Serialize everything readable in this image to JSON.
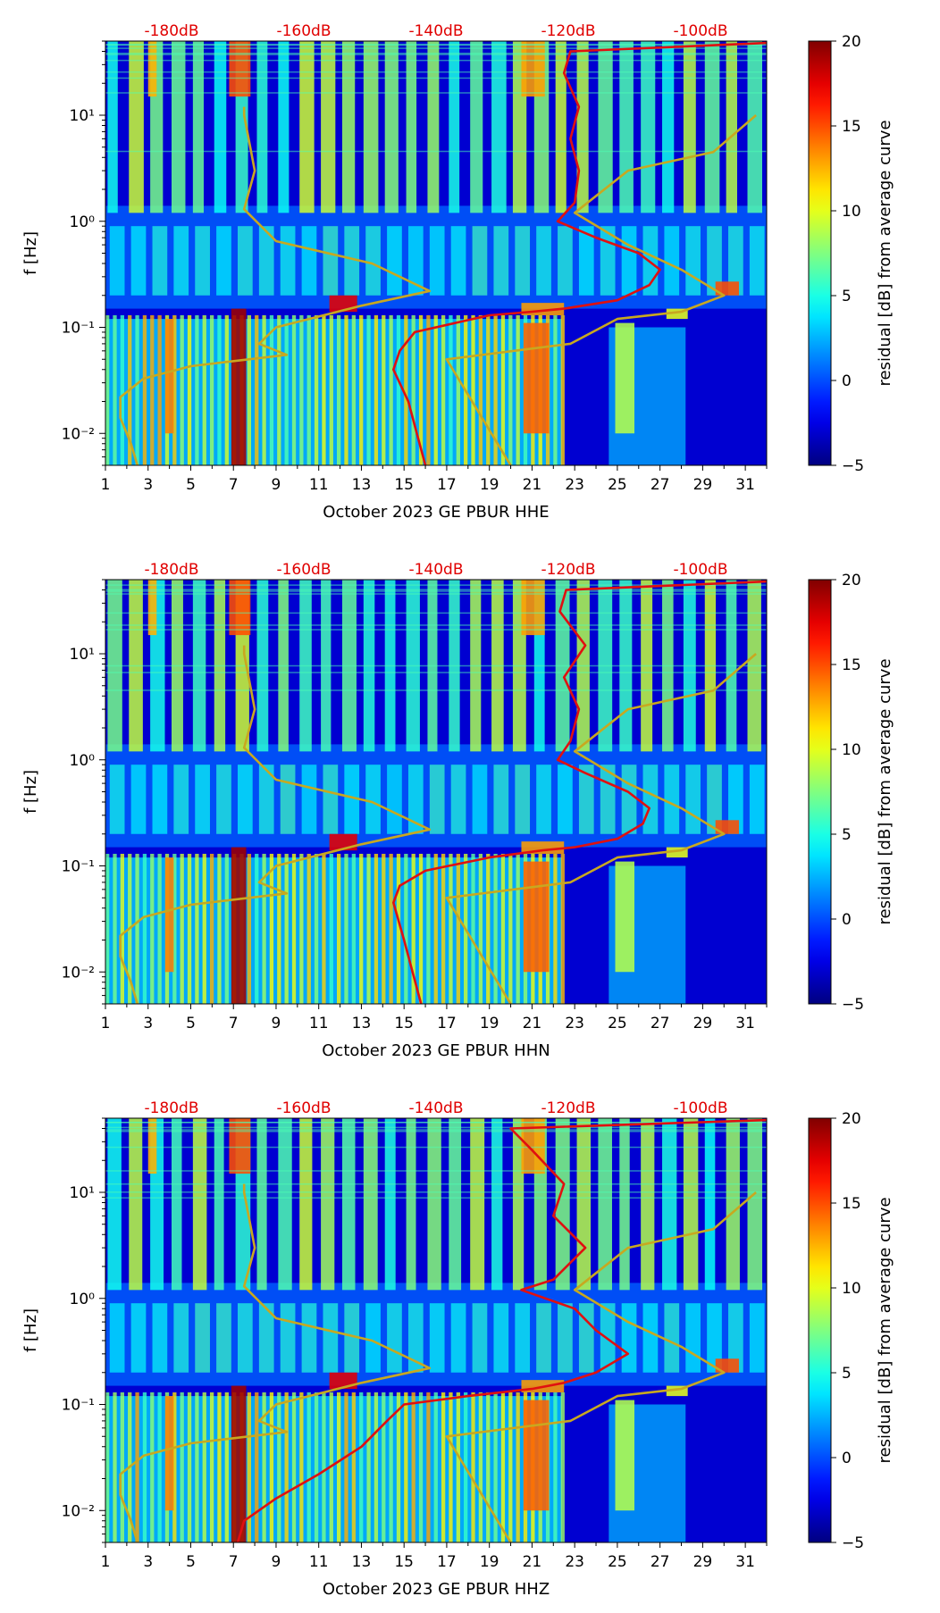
{
  "chart_data": [
    {
      "type": "heatmap",
      "xlabel": "October 2023 GE PBUR  HHE",
      "ylabel": "f [Hz]",
      "colorbar_label": "residual [dB] from average curve",
      "x_tick_labels": [
        "1",
        "3",
        "5",
        "7",
        "9",
        "11",
        "13",
        "15",
        "17",
        "19",
        "21",
        "23",
        "25",
        "27",
        "29",
        "31"
      ],
      "x_ticks": [
        1,
        3,
        5,
        7,
        9,
        11,
        13,
        15,
        17,
        19,
        21,
        23,
        25,
        27,
        29,
        31
      ],
      "xlim": [
        1,
        32
      ],
      "y_tick_labels": [
        "10⁻²",
        "10⁻¹",
        "10⁰",
        "10¹"
      ],
      "y_ticks": [
        0.01,
        0.1,
        1,
        10
      ],
      "ylim": [
        0.005,
        50
      ],
      "yscale": "log",
      "top_tick_labels": [
        "-180dB",
        "-160dB",
        "-140dB",
        "-120dB",
        "-100dB"
      ],
      "colorbar": {
        "min": -5,
        "max": 20,
        "tick_labels": [
          "20",
          "15",
          "10",
          "5",
          "0",
          "−5"
        ],
        "ticks": [
          20,
          15,
          10,
          5,
          0,
          -5
        ],
        "colormap": "jet"
      },
      "colors": {
        "psd_curve": "#e01010",
        "reference_curve": "#c8a820"
      },
      "psd_curve_day": [
        [
          16.0,
          0.005
        ],
        [
          15.6,
          0.01
        ],
        [
          15.2,
          0.02
        ],
        [
          14.5,
          0.04
        ],
        [
          14.8,
          0.06
        ],
        [
          15.5,
          0.09
        ],
        [
          19,
          0.13
        ],
        [
          21,
          0.14
        ],
        [
          22.5,
          0.15
        ],
        [
          25,
          0.18
        ],
        [
          26.5,
          0.25
        ],
        [
          27,
          0.35
        ],
        [
          26,
          0.5
        ],
        [
          24,
          0.7
        ],
        [
          22.2,
          1.0
        ],
        [
          23,
          1.5
        ],
        [
          23.2,
          3
        ],
        [
          22.8,
          6
        ],
        [
          23.2,
          12
        ],
        [
          22.5,
          25
        ],
        [
          22.8,
          40
        ],
        [
          32,
          48
        ]
      ],
      "reference_curve_day": [
        [
          2.5,
          0.005
        ],
        [
          2.2,
          0.008
        ],
        [
          1.7,
          0.014
        ],
        [
          1.7,
          0.022
        ],
        [
          2.8,
          0.033
        ],
        [
          5,
          0.043
        ],
        [
          9.5,
          0.055
        ],
        [
          8.2,
          0.07
        ],
        [
          9,
          0.1
        ],
        [
          13,
          0.16
        ],
        [
          16.2,
          0.22
        ],
        [
          13.5,
          0.4
        ],
        [
          9,
          0.65
        ],
        [
          7.5,
          1.3
        ],
        [
          8,
          3
        ],
        [
          7.5,
          10
        ],
        [
          7.5,
          12
        ]
      ],
      "reference_curve_night": [
        [
          20,
          0.005
        ],
        [
          17,
          0.05
        ],
        [
          22.8,
          0.07
        ],
        [
          25,
          0.12
        ],
        [
          28,
          0.14
        ],
        [
          30,
          0.2
        ],
        [
          28,
          0.35
        ],
        [
          25.5,
          0.6
        ],
        [
          23,
          1.2
        ],
        [
          25.5,
          3
        ],
        [
          29.5,
          4.5
        ],
        [
          31.5,
          10
        ]
      ]
    },
    {
      "type": "heatmap",
      "xlabel": "October 2023 GE PBUR  HHN",
      "ylabel": "f [Hz]",
      "colorbar_label": "residual [dB] from average curve",
      "x_tick_labels": [
        "1",
        "3",
        "5",
        "7",
        "9",
        "11",
        "13",
        "15",
        "17",
        "19",
        "21",
        "23",
        "25",
        "27",
        "29",
        "31"
      ],
      "x_ticks": [
        1,
        3,
        5,
        7,
        9,
        11,
        13,
        15,
        17,
        19,
        21,
        23,
        25,
        27,
        29,
        31
      ],
      "xlim": [
        1,
        32
      ],
      "y_tick_labels": [
        "10⁻²",
        "10⁻¹",
        "10⁰",
        "10¹"
      ],
      "y_ticks": [
        0.01,
        0.1,
        1,
        10
      ],
      "ylim": [
        0.005,
        50
      ],
      "yscale": "log",
      "top_tick_labels": [
        "-180dB",
        "-160dB",
        "-140dB",
        "-120dB",
        "-100dB"
      ],
      "colorbar": {
        "min": -5,
        "max": 20,
        "tick_labels": [
          "20",
          "15",
          "10",
          "5",
          "0",
          "−5"
        ],
        "ticks": [
          20,
          15,
          10,
          5,
          0,
          -5
        ],
        "colormap": "jet"
      },
      "colors": {
        "psd_curve": "#e01010",
        "reference_curve": "#c8a820"
      },
      "psd_curve_day": [
        [
          15.8,
          0.005
        ],
        [
          15.4,
          0.01
        ],
        [
          15.0,
          0.02
        ],
        [
          14.5,
          0.045
        ],
        [
          14.8,
          0.065
        ],
        [
          16,
          0.09
        ],
        [
          19,
          0.12
        ],
        [
          21.5,
          0.14
        ],
        [
          23,
          0.15
        ],
        [
          25,
          0.18
        ],
        [
          26.2,
          0.25
        ],
        [
          26.5,
          0.35
        ],
        [
          25.5,
          0.5
        ],
        [
          23.5,
          0.75
        ],
        [
          22.2,
          1.0
        ],
        [
          22.8,
          1.5
        ],
        [
          23.2,
          3
        ],
        [
          22.5,
          6
        ],
        [
          23.5,
          12
        ],
        [
          22.3,
          25
        ],
        [
          22.6,
          40
        ],
        [
          32,
          48
        ]
      ],
      "reference_curve_day": [
        [
          2.5,
          0.005
        ],
        [
          2.2,
          0.008
        ],
        [
          1.7,
          0.014
        ],
        [
          1.7,
          0.022
        ],
        [
          2.8,
          0.033
        ],
        [
          5,
          0.043
        ],
        [
          9.5,
          0.055
        ],
        [
          8.2,
          0.07
        ],
        [
          9,
          0.1
        ],
        [
          13,
          0.16
        ],
        [
          16.2,
          0.22
        ],
        [
          13.5,
          0.4
        ],
        [
          9,
          0.65
        ],
        [
          7.5,
          1.3
        ],
        [
          8,
          3
        ],
        [
          7.5,
          10
        ],
        [
          7.5,
          12
        ]
      ],
      "reference_curve_night": [
        [
          20,
          0.005
        ],
        [
          17,
          0.05
        ],
        [
          22.8,
          0.07
        ],
        [
          25,
          0.12
        ],
        [
          28,
          0.14
        ],
        [
          30,
          0.2
        ],
        [
          28,
          0.35
        ],
        [
          25.5,
          0.6
        ],
        [
          23,
          1.2
        ],
        [
          25.5,
          3
        ],
        [
          29.5,
          4.5
        ],
        [
          31.5,
          10
        ]
      ]
    },
    {
      "type": "heatmap",
      "xlabel": "October 2023 GE PBUR  HHZ",
      "ylabel": "f [Hz]",
      "colorbar_label": "residual [dB] from average curve",
      "x_tick_labels": [
        "1",
        "3",
        "5",
        "7",
        "9",
        "11",
        "13",
        "15",
        "17",
        "19",
        "21",
        "23",
        "25",
        "27",
        "29",
        "31"
      ],
      "x_ticks": [
        1,
        3,
        5,
        7,
        9,
        11,
        13,
        15,
        17,
        19,
        21,
        23,
        25,
        27,
        29,
        31
      ],
      "xlim": [
        1,
        32
      ],
      "y_tick_labels": [
        "10⁻²",
        "10⁻¹",
        "10⁰",
        "10¹"
      ],
      "y_ticks": [
        0.01,
        0.1,
        1,
        10
      ],
      "ylim": [
        0.005,
        50
      ],
      "yscale": "log",
      "top_tick_labels": [
        "-180dB",
        "-160dB",
        "-140dB",
        "-120dB",
        "-100dB"
      ],
      "colorbar": {
        "min": -5,
        "max": 20,
        "tick_labels": [
          "20",
          "15",
          "10",
          "5",
          "0",
          "−5"
        ],
        "ticks": [
          20,
          15,
          10,
          5,
          0,
          -5
        ],
        "colormap": "jet"
      },
      "colors": {
        "psd_curve": "#e01010",
        "reference_curve": "#c8a820"
      },
      "psd_curve_day": [
        [
          7.2,
          0.005
        ],
        [
          7.5,
          0.008
        ],
        [
          9,
          0.013
        ],
        [
          11,
          0.022
        ],
        [
          13,
          0.04
        ],
        [
          14.2,
          0.07
        ],
        [
          15,
          0.1
        ],
        [
          18,
          0.12
        ],
        [
          21,
          0.14
        ],
        [
          22.5,
          0.16
        ],
        [
          24,
          0.2
        ],
        [
          25.5,
          0.3
        ],
        [
          24,
          0.5
        ],
        [
          23,
          0.8
        ],
        [
          20.5,
          1.2
        ],
        [
          22,
          1.5
        ],
        [
          23.5,
          3
        ],
        [
          22,
          6
        ],
        [
          22.5,
          12
        ],
        [
          21,
          25
        ],
        [
          20,
          40
        ],
        [
          32,
          48
        ]
      ],
      "reference_curve_day": [
        [
          2.5,
          0.005
        ],
        [
          2.2,
          0.008
        ],
        [
          1.7,
          0.014
        ],
        [
          1.7,
          0.022
        ],
        [
          2.8,
          0.033
        ],
        [
          5,
          0.043
        ],
        [
          9.5,
          0.055
        ],
        [
          8.2,
          0.07
        ],
        [
          9,
          0.1
        ],
        [
          13,
          0.16
        ],
        [
          16.2,
          0.22
        ],
        [
          13.5,
          0.4
        ],
        [
          9,
          0.65
        ],
        [
          7.5,
          1.3
        ],
        [
          8,
          3
        ],
        [
          7.5,
          10
        ],
        [
          7.5,
          12
        ]
      ],
      "reference_curve_night": [
        [
          20,
          0.005
        ],
        [
          17,
          0.05
        ],
        [
          22.8,
          0.07
        ],
        [
          25,
          0.12
        ],
        [
          28,
          0.14
        ],
        [
          30,
          0.2
        ],
        [
          28,
          0.35
        ],
        [
          25.5,
          0.6
        ],
        [
          23,
          1.2
        ],
        [
          25.5,
          3
        ],
        [
          29.5,
          4.5
        ],
        [
          31.5,
          10
        ]
      ]
    }
  ]
}
